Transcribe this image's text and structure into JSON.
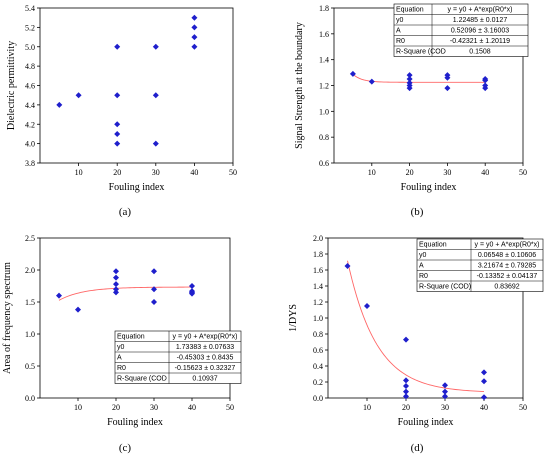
{
  "figure": {
    "panel_labels": [
      "(a)",
      "(b)",
      "(c)",
      "(d)"
    ]
  },
  "colors": {
    "marker": "#1f1fcc",
    "fit": "#ff6666",
    "axis": "#000000"
  },
  "chart_data": [
    {
      "id": "a",
      "type": "scatter",
      "xlabel": "Fouling index",
      "ylabel": "Dielectric permittivity",
      "xlim": [
        0,
        50
      ],
      "ylim": [
        3.8,
        5.4
      ],
      "xticks": [
        10,
        20,
        30,
        40,
        50
      ],
      "yticks": [
        3.8,
        4.0,
        4.2,
        4.4,
        4.6,
        4.8,
        5.0,
        5.2,
        5.4
      ],
      "ytick_decimals": 1,
      "points": [
        [
          5,
          4.4
        ],
        [
          10,
          4.5
        ],
        [
          20,
          5.0
        ],
        [
          20,
          4.5
        ],
        [
          20,
          4.2
        ],
        [
          20,
          4.1
        ],
        [
          20,
          4.0
        ],
        [
          30,
          5.0
        ],
        [
          30,
          4.5
        ],
        [
          30,
          4.0
        ],
        [
          40,
          5.3
        ],
        [
          40,
          5.2
        ],
        [
          40,
          5.1
        ],
        [
          40,
          5.0
        ]
      ],
      "fit": null,
      "table": null
    },
    {
      "id": "b",
      "type": "scatter",
      "xlabel": "Fouling index",
      "ylabel": "Signal Strength at the boundary",
      "xlim": [
        0,
        50
      ],
      "ylim": [
        0.6,
        1.8
      ],
      "xticks": [
        10,
        20,
        30,
        40,
        50
      ],
      "yticks": [
        0.6,
        0.8,
        1.0,
        1.2,
        1.4,
        1.6,
        1.8
      ],
      "ytick_decimals": 1,
      "points": [
        [
          5,
          1.29
        ],
        [
          10,
          1.23
        ],
        [
          20,
          1.28
        ],
        [
          20,
          1.25
        ],
        [
          20,
          1.22
        ],
        [
          20,
          1.2
        ],
        [
          20,
          1.18
        ],
        [
          30,
          1.28
        ],
        [
          30,
          1.26
        ],
        [
          30,
          1.18
        ],
        [
          40,
          1.25
        ],
        [
          40,
          1.24
        ],
        [
          40,
          1.2
        ],
        [
          40,
          1.18
        ]
      ],
      "fit": {
        "y0": 1.22485,
        "A": 0.52096,
        "R0": -0.42321,
        "x_from": 5,
        "x_to": 40
      },
      "table": [
        [
          "Equation",
          "y = y0 + A*exp(R0*x)"
        ],
        [
          "y0",
          "1.22485 ± 0.0127"
        ],
        [
          "A",
          "0.52096 ± 3.16003"
        ],
        [
          "R0",
          "-0.42321 ± 1.20119"
        ],
        [
          "R-Square (COD",
          "0.1508"
        ]
      ]
    },
    {
      "id": "c",
      "type": "scatter",
      "xlabel": "Fouling index",
      "ylabel": "Area of frequency spectrum",
      "xlim": [
        0,
        50
      ],
      "ylim": [
        0.0,
        2.5
      ],
      "xticks": [
        10,
        20,
        30,
        40,
        50
      ],
      "yticks": [
        0.0,
        0.5,
        1.0,
        1.5,
        2.0,
        2.5
      ],
      "ytick_decimals": 1,
      "points": [
        [
          5,
          1.6
        ],
        [
          10,
          1.38
        ],
        [
          20,
          1.98
        ],
        [
          20,
          1.88
        ],
        [
          20,
          1.78
        ],
        [
          20,
          1.7
        ],
        [
          20,
          1.65
        ],
        [
          30,
          1.98
        ],
        [
          30,
          1.7
        ],
        [
          30,
          1.5
        ],
        [
          40,
          1.75
        ],
        [
          40,
          1.67
        ],
        [
          40,
          1.65
        ],
        [
          40,
          1.63
        ]
      ],
      "fit": {
        "y0": 1.73383,
        "A": -0.45303,
        "R0": -0.15623,
        "x_from": 5,
        "x_to": 40
      },
      "table": [
        [
          "Equation",
          "y = y0 + A*exp(R0*x)"
        ],
        [
          "y0",
          "1.73383 ± 0.07633"
        ],
        [
          "A",
          "-0.45303 ± 0.8435"
        ],
        [
          "R0",
          "-0.15623 ± 0.32327"
        ],
        [
          "R-Square (COD",
          "0.10937"
        ]
      ]
    },
    {
      "id": "d",
      "type": "scatter",
      "xlabel": "Fouling index",
      "ylabel": "1/DYS",
      "xlim": [
        0,
        50
      ],
      "ylim": [
        0.0,
        2.0
      ],
      "xticks": [
        10,
        20,
        30,
        40,
        50
      ],
      "yticks": [
        0.0,
        0.2,
        0.4,
        0.6,
        0.8,
        1.0,
        1.2,
        1.4,
        1.6,
        1.8,
        2.0
      ],
      "ytick_decimals": 1,
      "points": [
        [
          5,
          1.65
        ],
        [
          10,
          1.15
        ],
        [
          20,
          0.73
        ],
        [
          20,
          0.22
        ],
        [
          20,
          0.15
        ],
        [
          20,
          0.08
        ],
        [
          20,
          0.02
        ],
        [
          30,
          0.16
        ],
        [
          30,
          0.08
        ],
        [
          30,
          0.02
        ],
        [
          40,
          0.32
        ],
        [
          40,
          0.21
        ],
        [
          40,
          0.01
        ]
      ],
      "fit": {
        "y0": 0.06548,
        "A": 3.21674,
        "R0": -0.13352,
        "x_from": 5,
        "x_to": 40
      },
      "table": [
        [
          "Equation",
          "y = y0 + A*exp(R0*x)"
        ],
        [
          "y0",
          "0.06548 ± 0.10606"
        ],
        [
          "A",
          "3.21674 ± 0.79285"
        ],
        [
          "R0",
          "-0.13352 ± 0.04137"
        ],
        [
          "R-Square (COD)",
          "0.83692"
        ]
      ]
    }
  ]
}
